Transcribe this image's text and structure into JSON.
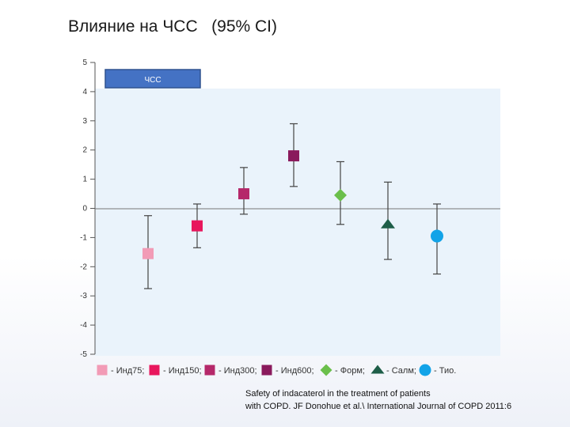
{
  "slide": {
    "title": "Влияние на ЧСС   (95% CI)",
    "source_line1": "Safety of indacaterol in the treatment of patients",
    "source_line2": "with COPD. JF Donohue et al.\\ International Journal of COPD 2011:6"
  },
  "chart_data": {
    "type": "scatter",
    "title": "ЧСС",
    "xlabel": "",
    "ylabel": "",
    "ylim": [
      -5,
      5
    ],
    "yticks": [
      5,
      4,
      3,
      2,
      1,
      0,
      -1,
      -2,
      -3,
      -4,
      -5
    ],
    "grid": false,
    "zero_line": true,
    "legend_position": "bottom",
    "series": [
      {
        "name": "Инд75;",
        "value": -1.55,
        "ci_low": -2.75,
        "ci_high": -0.25,
        "marker": "square",
        "color": "#f29bb6"
      },
      {
        "name": "Инд150;",
        "value": -0.6,
        "ci_low": -1.35,
        "ci_high": 0.15,
        "marker": "square",
        "color": "#e8175d"
      },
      {
        "name": "Инд300;",
        "value": 0.5,
        "ci_low": -0.2,
        "ci_high": 1.4,
        "marker": "square",
        "color": "#b5286a"
      },
      {
        "name": "Инд600;",
        "value": 1.8,
        "ci_low": 0.75,
        "ci_high": 2.9,
        "marker": "square",
        "color": "#8a1a5c"
      },
      {
        "name": "Форм;",
        "value": 0.45,
        "ci_low": -0.55,
        "ci_high": 1.6,
        "marker": "diamond",
        "color": "#6abf4b"
      },
      {
        "name": "Салм;",
        "value": -0.55,
        "ci_low": -1.75,
        "ci_high": 0.9,
        "marker": "triangle",
        "color": "#1e5e48"
      },
      {
        "name": "Тио.",
        "value": -0.95,
        "ci_low": -2.25,
        "ci_high": 0.15,
        "marker": "circle",
        "color": "#12a3e8"
      }
    ]
  }
}
